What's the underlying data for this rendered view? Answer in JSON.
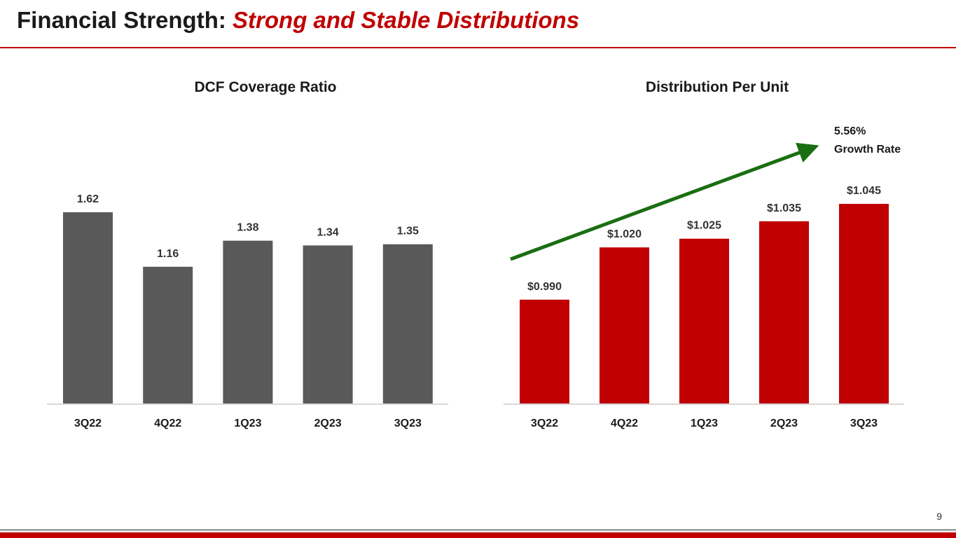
{
  "slide": {
    "title_prefix": "Financial Strength: ",
    "title_accent": "Strong and Stable Distributions",
    "page_number": "9"
  },
  "colors": {
    "accent": "#c00000",
    "bar_gray": "#595959",
    "bar_red": "#c00000",
    "arrow_green": "#1a6e12",
    "axis": "#d9d9d9"
  },
  "chart_data": [
    {
      "type": "bar",
      "title": "DCF Coverage Ratio",
      "categories": [
        "3Q22",
        "4Q22",
        "1Q23",
        "2Q23",
        "3Q23"
      ],
      "values": [
        1.62,
        1.16,
        1.38,
        1.34,
        1.35
      ],
      "labels": [
        "1.62",
        "1.16",
        "1.38",
        "1.34",
        "1.35"
      ],
      "ylim": [
        0,
        1.62
      ],
      "xlabel": "",
      "ylabel": "",
      "grid": false
    },
    {
      "type": "bar",
      "title": "Distribution Per Unit",
      "categories": [
        "3Q22",
        "4Q22",
        "1Q23",
        "2Q23",
        "3Q23"
      ],
      "values": [
        0.99,
        1.02,
        1.025,
        1.035,
        1.045
      ],
      "labels": [
        "$0.990",
        "$1.020",
        "$1.025",
        "$1.035",
        "$1.045"
      ],
      "ylim": [
        0.93,
        1.045
      ],
      "xlabel": "",
      "ylabel": "",
      "grid": false,
      "annotation": {
        "line1": "5.56%",
        "line2": "Growth Rate"
      }
    }
  ]
}
